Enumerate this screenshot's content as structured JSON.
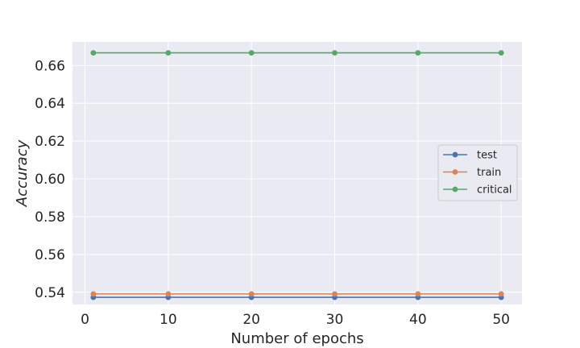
{
  "chart_data": {
    "type": "line",
    "xlabel": "Number of epochs",
    "ylabel": "Accuracy",
    "x": [
      1,
      10,
      20,
      30,
      40,
      50
    ],
    "xlim": [
      -1.5,
      52.5
    ],
    "ylim": [
      0.5335,
      0.6725
    ],
    "xticks": [
      0,
      10,
      20,
      30,
      40,
      50
    ],
    "yticks": [
      0.54,
      0.56,
      0.58,
      0.6,
      0.62,
      0.64,
      0.66
    ],
    "ytick_labels": [
      "0.54",
      "0.56",
      "0.58",
      "0.60",
      "0.62",
      "0.64",
      "0.66"
    ],
    "grid": true,
    "legend_position": "center-right",
    "series": [
      {
        "name": "test",
        "color": "#4c72b0",
        "values": [
          0.5373,
          0.5373,
          0.5373,
          0.5373,
          0.5373,
          0.5373
        ]
      },
      {
        "name": "train",
        "color": "#dd8452",
        "values": [
          0.5391,
          0.5391,
          0.5391,
          0.5391,
          0.5391,
          0.5391
        ]
      },
      {
        "name": "critical",
        "color": "#55a868",
        "values": [
          0.6667,
          0.6667,
          0.6667,
          0.6667,
          0.6667,
          0.6667
        ]
      }
    ]
  }
}
